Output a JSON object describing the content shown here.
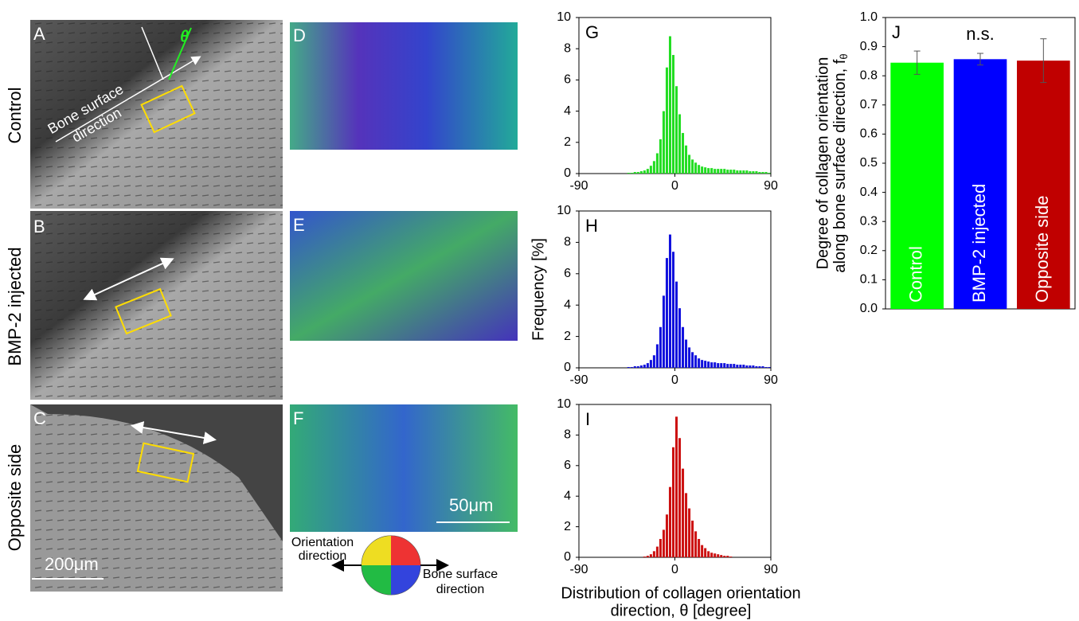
{
  "panels": {
    "rows": [
      "Control",
      "BMP-2 injected",
      "Opposite side"
    ],
    "letters": [
      "A",
      "B",
      "C",
      "D",
      "E",
      "F"
    ],
    "bone_surface_label": [
      "Bone surface",
      "direction"
    ],
    "theta": "θ",
    "scale_large": "200μm",
    "scale_small": "50μm",
    "orientation_label": [
      "Orientation",
      "direction"
    ],
    "wheel_bone_label": [
      "Bone surface",
      "direction"
    ]
  },
  "chart_data": [
    {
      "type": "histogram",
      "panel": "G",
      "color": "#22dd22",
      "xlim": [
        -90,
        90
      ],
      "ylim": [
        0,
        10
      ],
      "xticks": [
        -90,
        0,
        90
      ],
      "yticks": [
        0,
        2,
        4,
        6,
        8,
        10
      ],
      "bins": [
        -90,
        -87,
        -84,
        -81,
        -78,
        -75,
        -72,
        -69,
        -66,
        -63,
        -60,
        -57,
        -54,
        -51,
        -48,
        -45,
        -42,
        -39,
        -36,
        -33,
        -30,
        -27,
        -24,
        -21,
        -18,
        -15,
        -12,
        -9,
        -6,
        -3,
        0,
        3,
        6,
        9,
        12,
        15,
        18,
        21,
        24,
        27,
        30,
        33,
        36,
        39,
        42,
        45,
        48,
        51,
        54,
        57,
        60,
        63,
        66,
        69,
        72,
        75,
        78,
        81,
        84,
        87,
        90
      ],
      "values": [
        0,
        0,
        0,
        0,
        0,
        0,
        0,
        0,
        0,
        0,
        0,
        0,
        0,
        0,
        0,
        0.05,
        0.05,
        0.1,
        0.1,
        0.15,
        0.2,
        0.3,
        0.5,
        0.8,
        1.3,
        2.2,
        4.0,
        6.8,
        8.8,
        7.6,
        5.6,
        3.8,
        2.6,
        1.8,
        1.2,
        0.9,
        0.7,
        0.55,
        0.45,
        0.4,
        0.35,
        0.35,
        0.3,
        0.3,
        0.3,
        0.3,
        0.25,
        0.25,
        0.25,
        0.2,
        0.2,
        0.2,
        0.2,
        0.15,
        0.15,
        0.15,
        0.1,
        0.1,
        0.1,
        0.05
      ]
    },
    {
      "type": "histogram",
      "panel": "H",
      "ylabel": "Frequency [%]",
      "color": "#1111dd",
      "xlim": [
        -90,
        90
      ],
      "ylim": [
        0,
        10
      ],
      "xticks": [
        -90,
        0,
        90
      ],
      "yticks": [
        0,
        2,
        4,
        6,
        8,
        10
      ],
      "bins": [
        -90,
        -87,
        -84,
        -81,
        -78,
        -75,
        -72,
        -69,
        -66,
        -63,
        -60,
        -57,
        -54,
        -51,
        -48,
        -45,
        -42,
        -39,
        -36,
        -33,
        -30,
        -27,
        -24,
        -21,
        -18,
        -15,
        -12,
        -9,
        -6,
        -3,
        0,
        3,
        6,
        9,
        12,
        15,
        18,
        21,
        24,
        27,
        30,
        33,
        36,
        39,
        42,
        45,
        48,
        51,
        54,
        57,
        60,
        63,
        66,
        69,
        72,
        75,
        78,
        81,
        84,
        87,
        90
      ],
      "values": [
        0,
        0,
        0,
        0,
        0,
        0,
        0,
        0,
        0,
        0,
        0,
        0,
        0,
        0,
        0,
        0.05,
        0.05,
        0.1,
        0.1,
        0.15,
        0.2,
        0.3,
        0.5,
        0.8,
        1.5,
        2.6,
        4.6,
        7.0,
        8.5,
        7.4,
        5.5,
        3.8,
        2.6,
        1.8,
        1.3,
        1.0,
        0.8,
        0.6,
        0.5,
        0.45,
        0.4,
        0.35,
        0.35,
        0.3,
        0.3,
        0.3,
        0.25,
        0.25,
        0.25,
        0.2,
        0.2,
        0.2,
        0.15,
        0.15,
        0.15,
        0.1,
        0.1,
        0.1,
        0.05,
        0.05
      ]
    },
    {
      "type": "histogram",
      "panel": "I",
      "xlabel": [
        "Distribution of collagen orientation",
        "direction, θ [degree]"
      ],
      "color": "#cc1111",
      "xlim": [
        -90,
        90
      ],
      "ylim": [
        0,
        10
      ],
      "xticks": [
        -90,
        0,
        90
      ],
      "yticks": [
        0,
        2,
        4,
        6,
        8,
        10
      ],
      "bins": [
        -90,
        -87,
        -84,
        -81,
        -78,
        -75,
        -72,
        -69,
        -66,
        -63,
        -60,
        -57,
        -54,
        -51,
        -48,
        -45,
        -42,
        -39,
        -36,
        -33,
        -30,
        -27,
        -24,
        -21,
        -18,
        -15,
        -12,
        -9,
        -6,
        -3,
        0,
        3,
        6,
        9,
        12,
        15,
        18,
        21,
        24,
        27,
        30,
        33,
        36,
        39,
        42,
        45,
        48,
        51,
        54,
        57,
        60,
        63,
        66,
        69,
        72,
        75,
        78,
        81,
        84,
        87,
        90
      ],
      "values": [
        0,
        0,
        0,
        0,
        0,
        0,
        0,
        0,
        0,
        0,
        0,
        0,
        0,
        0,
        0,
        0,
        0,
        0,
        0,
        0,
        0.05,
        0.1,
        0.2,
        0.4,
        0.7,
        1.2,
        1.8,
        2.8,
        4.6,
        7.2,
        9.2,
        7.8,
        5.8,
        4.2,
        3.2,
        2.4,
        1.7,
        1.2,
        0.8,
        0.6,
        0.4,
        0.3,
        0.25,
        0.2,
        0.15,
        0.1,
        0.1,
        0.05,
        0,
        0,
        0,
        0,
        0,
        0,
        0,
        0,
        0,
        0,
        0,
        0
      ]
    },
    {
      "type": "bar",
      "panel": "J",
      "annotation": "n.s.",
      "ylabel": [
        "Degree of collagen orientation",
        "along bone surface direction, f"
      ],
      "ylabel_sub": "θ",
      "categories": [
        "Control",
        "BMP-2 injected",
        "Opposite side"
      ],
      "values": [
        0.845,
        0.857,
        0.852
      ],
      "errors": [
        0.04,
        0.02,
        0.075
      ],
      "colors": [
        "#00ff00",
        "#0000ff",
        "#c00000"
      ],
      "ylim": [
        0,
        1
      ],
      "yticks": [
        {
          "value": 0,
          "label": "0.0"
        },
        0.1,
        0.2,
        0.3,
        0.4,
        0.5,
        0.6,
        0.7,
        0.8,
        0.9,
        {
          "value": 1,
          "label": "1.0"
        }
      ]
    }
  ]
}
